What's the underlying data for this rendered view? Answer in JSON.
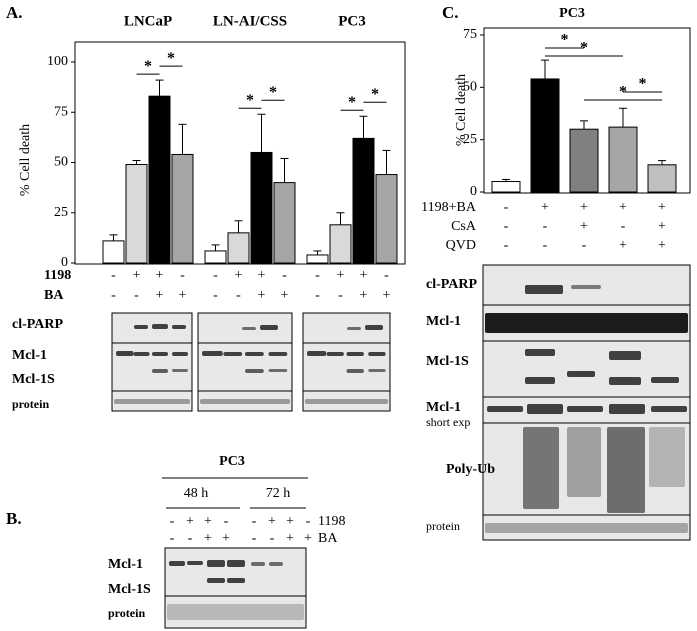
{
  "chart_data": [
    {
      "type": "bar",
      "ylabel": "% Cell death",
      "categories": [
        "LNCaP",
        "LN-AI/CSS",
        "PC3"
      ],
      "series": [
        {
          "color": "#ffffff",
          "values": [
            11,
            6,
            4
          ],
          "errors": [
            3,
            3,
            2
          ]
        },
        {
          "color": "#d9d9d9",
          "values": [
            49,
            15,
            19
          ],
          "errors": [
            2,
            6,
            6
          ]
        },
        {
          "color": "#000000",
          "values": [
            83,
            55,
            62
          ],
          "errors": [
            8,
            19,
            11
          ]
        },
        {
          "color": "#a6a6a6",
          "values": [
            54,
            40,
            44
          ],
          "errors": [
            15,
            12,
            12
          ]
        }
      ],
      "ylim": [
        0,
        100
      ],
      "yticks": [
        0,
        25,
        50,
        75,
        100
      ],
      "significance": "*",
      "treatments": [
        {
          "name": "1198",
          "signs": [
            "-",
            "+",
            "+",
            "-"
          ]
        },
        {
          "name": "BA",
          "signs": [
            "-",
            "-",
            "+",
            "+"
          ]
        }
      ]
    },
    {
      "type": "bar",
      "title": "PC3",
      "ylabel": "% Cell death",
      "values": [
        5,
        54,
        30,
        31,
        13
      ],
      "errors": [
        1,
        9,
        4,
        9,
        2
      ],
      "colors": [
        "#ffffff",
        "#000000",
        "#808080",
        "#a6a6a6",
        "#bfbfbf"
      ],
      "ylim": [
        0,
        75
      ],
      "yticks": [
        0,
        25,
        50,
        75
      ],
      "significance": "*",
      "treatments": [
        {
          "name": "1198+BA",
          "signs": [
            "-",
            "+",
            "+",
            "+",
            "+"
          ]
        },
        {
          "name": "CsA",
          "signs": [
            "-",
            "-",
            "+",
            "-",
            "+"
          ]
        },
        {
          "name": "QVD",
          "signs": [
            "-",
            "-",
            "-",
            "+",
            "+"
          ]
        }
      ]
    }
  ],
  "panel_labels": {
    "a": "A.",
    "b": "B.",
    "c": "C."
  },
  "panel_a_blot_labels": [
    "cl-PARP",
    "Mcl-1",
    "Mcl-1S",
    "protein"
  ],
  "panel_b": {
    "title": "PC3",
    "time_labels": [
      "48 h",
      "72 h"
    ],
    "treatments": [
      {
        "name": "1198",
        "signs": [
          "-",
          "+",
          "+",
          "-",
          "-",
          "+",
          "+",
          "-"
        ]
      },
      {
        "name": "BA",
        "signs": [
          "-",
          "-",
          "+",
          "+",
          "-",
          "-",
          "+",
          "+"
        ]
      }
    ],
    "blot_labels": [
      "Mcl-1",
      "Mcl-1S",
      "protein"
    ]
  },
  "panel_c_blot_labels": [
    "cl-PARP",
    "Mcl-1",
    "Mcl-1S",
    "Mcl-1",
    "short exp",
    "Poly-Ub",
    "protein"
  ]
}
